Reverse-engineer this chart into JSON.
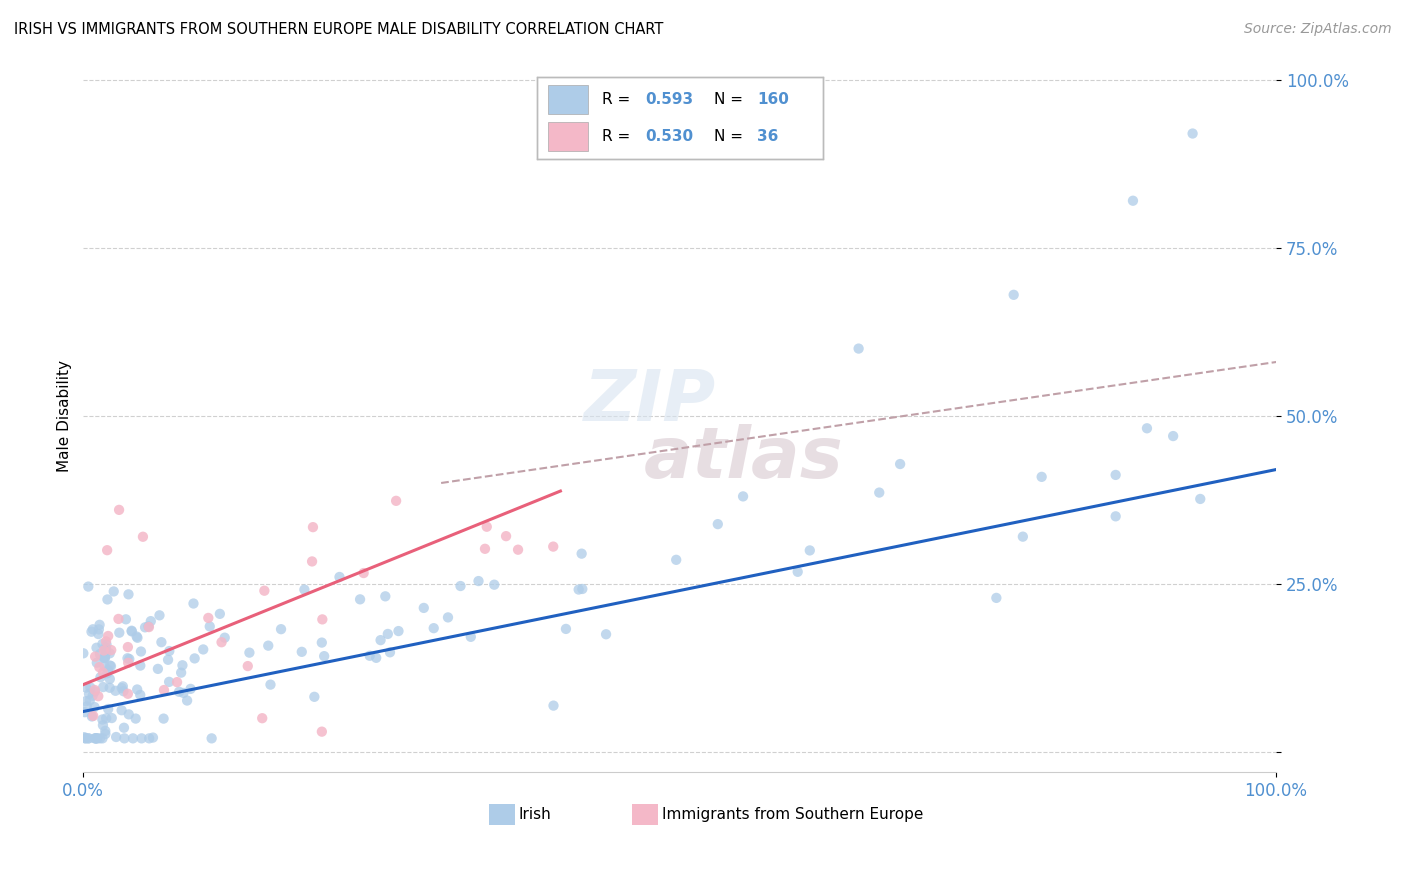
{
  "title": "IRISH VS IMMIGRANTS FROM SOUTHERN EUROPE MALE DISABILITY CORRELATION CHART",
  "source": "Source: ZipAtlas.com",
  "ylabel": "Male Disability",
  "legend_irish_R": 0.593,
  "legend_irish_N": 160,
  "legend_imm_R": 0.53,
  "legend_imm_N": 36,
  "irish_color": "#aecce8",
  "imm_color": "#f4b8c8",
  "irish_line_color": "#2060c0",
  "imm_line_color": "#e8607a",
  "trend_dashed_color": "#c0a0a8",
  "watermark_top": "ZIP",
  "watermark_bot": "atlas",
  "ytick_color": "#5090d0",
  "xtick_color": "#5090d0"
}
